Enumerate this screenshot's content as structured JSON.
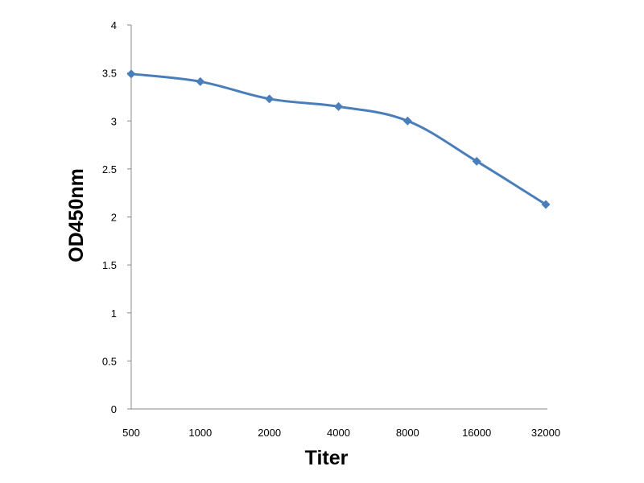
{
  "chart_data": {
    "type": "line",
    "title": "",
    "xlabel": "Titer",
    "ylabel": "OD450nm",
    "categories": [
      "500",
      "1000",
      "2000",
      "4000",
      "8000",
      "16000",
      "32000"
    ],
    "series": [
      {
        "values": [
          3.49,
          3.41,
          3.23,
          3.15,
          3.0,
          2.58,
          2.13
        ],
        "color": "#4a7ebb",
        "marker": "diamond"
      }
    ],
    "ylim": [
      0,
      4
    ],
    "yticks": [
      "0",
      "0.5",
      "1",
      "1.5",
      "2",
      "2.5",
      "3",
      "3.5",
      "4"
    ],
    "ytick_values": [
      0,
      0.5,
      1,
      1.5,
      2,
      2.5,
      3,
      3.5,
      4
    ],
    "grid": false,
    "legend": "none"
  }
}
